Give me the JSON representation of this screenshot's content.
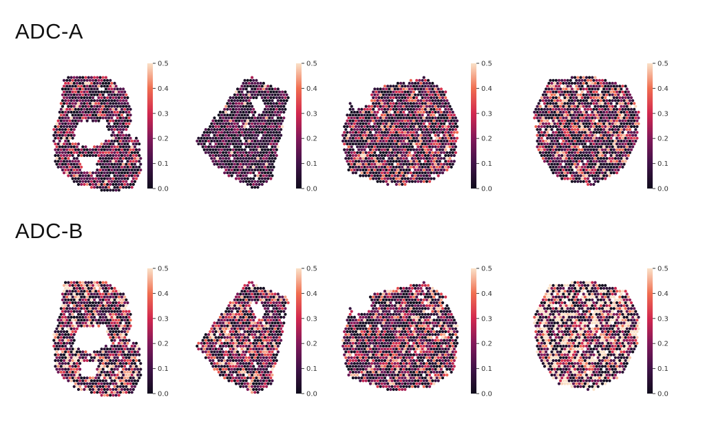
{
  "rows": [
    {
      "title": "ADC-A"
    },
    {
      "title": "ADC-B"
    }
  ],
  "chart_data": [
    {
      "type": "heatmap",
      "row": "ADC-A",
      "panel": 1,
      "colorbar_ticks": [
        "0.0",
        "0.1",
        "0.2",
        "0.3",
        "0.4",
        "0.5"
      ],
      "vmin": 0.0,
      "vmax": 0.5,
      "mean_value": 0.09,
      "colormap": "rocket"
    },
    {
      "type": "heatmap",
      "row": "ADC-A",
      "panel": 2,
      "colorbar_ticks": [
        "0.0",
        "0.1",
        "0.2",
        "0.3",
        "0.4",
        "0.5"
      ],
      "vmin": 0.0,
      "vmax": 0.5,
      "mean_value": 0.06,
      "colormap": "rocket"
    },
    {
      "type": "heatmap",
      "row": "ADC-A",
      "panel": 3,
      "colorbar_ticks": [
        "0.0",
        "0.1",
        "0.2",
        "0.3",
        "0.4",
        "0.5"
      ],
      "vmin": 0.0,
      "vmax": 0.5,
      "mean_value": 0.11,
      "colormap": "rocket"
    },
    {
      "type": "heatmap",
      "row": "ADC-A",
      "panel": 4,
      "colorbar_ticks": [
        "0.0",
        "0.1",
        "0.2",
        "0.3",
        "0.4",
        "0.5"
      ],
      "vmin": 0.0,
      "vmax": 0.5,
      "mean_value": 0.12,
      "colormap": "rocket"
    },
    {
      "type": "heatmap",
      "row": "ADC-B",
      "panel": 1,
      "colorbar_ticks": [
        "0.0",
        "0.1",
        "0.2",
        "0.3",
        "0.4",
        "0.5"
      ],
      "vmin": 0.0,
      "vmax": 0.5,
      "mean_value": 0.14,
      "colormap": "rocket"
    },
    {
      "type": "heatmap",
      "row": "ADC-B",
      "panel": 2,
      "colorbar_ticks": [
        "0.0",
        "0.1",
        "0.2",
        "0.3",
        "0.4",
        "0.5"
      ],
      "vmin": 0.0,
      "vmax": 0.5,
      "mean_value": 0.12,
      "colormap": "rocket"
    },
    {
      "type": "heatmap",
      "row": "ADC-B",
      "panel": 3,
      "colorbar_ticks": [
        "0.0",
        "0.1",
        "0.2",
        "0.3",
        "0.4",
        "0.5"
      ],
      "vmin": 0.0,
      "vmax": 0.5,
      "mean_value": 0.12,
      "colormap": "rocket"
    },
    {
      "type": "heatmap",
      "row": "ADC-B",
      "panel": 4,
      "colorbar_ticks": [
        "0.0",
        "0.1",
        "0.2",
        "0.3",
        "0.4",
        "0.5"
      ],
      "vmin": 0.0,
      "vmax": 0.5,
      "mean_value": 0.22,
      "colormap": "rocket"
    }
  ]
}
